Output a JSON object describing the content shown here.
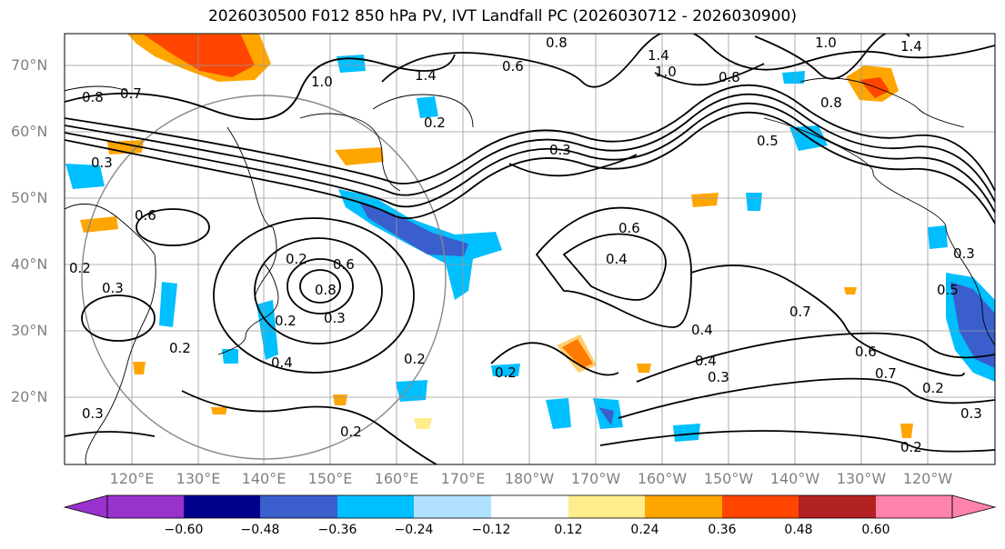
{
  "title": "2026030500 F012 850 hPa PV, IVT Landfall PC (2026030712 - 2026030900)",
  "lat_labels": [
    "70°N",
    "60°N",
    "50°N",
    "40°N",
    "30°N",
    "20°N"
  ],
  "lon_labels": [
    "120°E",
    "130°E",
    "140°E",
    "150°E",
    "160°E",
    "170°E",
    "180°W",
    "170°W",
    "160°W",
    "150°W",
    "140°W",
    "130°W",
    "120°W"
  ],
  "contour_labels": [
    "0.8",
    "0.7",
    "1.0",
    "1.4",
    "0.8",
    "0.6",
    "1.4",
    "1.0",
    "0.8",
    "1.0",
    "1.4",
    "0.8",
    "0.3",
    "0.6",
    "0.3",
    "0.5",
    "0.2",
    "0.3",
    "0.6",
    "0.8",
    "0.2",
    "0.3",
    "0.2",
    "0.4",
    "0.2",
    "0.4",
    "0.6",
    "0.4",
    "0.3",
    "0.4",
    "0.3",
    "0.2",
    "0.7",
    "0.6",
    "0.7",
    "0.2",
    "0.3",
    "0.2",
    "0.2",
    "0.5",
    "0.3",
    "0.2",
    "0.2"
  ],
  "colorbar": {
    "ticks": [
      "−0.60",
      "−0.48",
      "−0.36",
      "−0.24",
      "−0.12",
      "0.12",
      "0.24",
      "0.36",
      "0.48",
      "0.60"
    ],
    "colors": [
      "#9932cc",
      "#00008b",
      "#3a5fcd",
      "#00bfff",
      "#b0e2ff",
      "#ffffff",
      "#ffec8b",
      "#ffa500",
      "#ff4500",
      "#b22222",
      "#ff82ab"
    ]
  }
}
